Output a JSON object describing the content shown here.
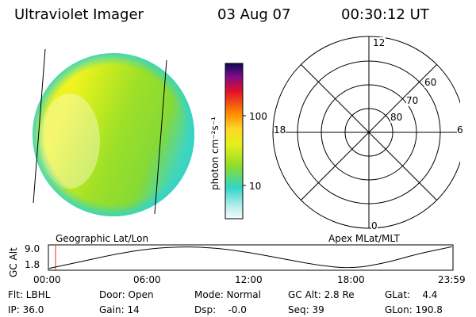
{
  "header": {
    "title": "Ultraviolet Imager",
    "date": "03 Aug 07",
    "time": "00:30:12 UT"
  },
  "imager": {
    "geo_label": "Geographic Lat/Lon",
    "apex_label": "Apex MLat/MLT"
  },
  "colorbar": {
    "unit_label": "photon cm⁻²s⁻¹",
    "ticks": [
      "100",
      "10"
    ]
  },
  "polar": {
    "mlt_labels": {
      "top": "12",
      "left": "18",
      "right": "6",
      "bottom": "0"
    },
    "lat_labels": [
      "60",
      "70",
      "80"
    ]
  },
  "altitude": {
    "axis_label": "GC Alt",
    "ytick_max": "9.0",
    "ytick_min": "1.8",
    "time_ticks": [
      "00:00",
      "06:00",
      "12:00",
      "18:00",
      "23:59"
    ]
  },
  "chart_data": {
    "type": "line",
    "title": "",
    "xlabel": "",
    "ylabel": "GC Alt",
    "x": [
      0,
      2,
      4,
      6,
      8,
      10,
      12,
      14,
      16,
      18,
      20,
      22,
      23.98
    ],
    "y": [
      1.9,
      4.2,
      6.6,
      8.3,
      9.0,
      8.5,
      7.0,
      4.9,
      2.9,
      1.8,
      3.6,
      6.7,
      8.9
    ],
    "xlim": [
      0,
      24
    ],
    "ylim": [
      1.8,
      9.0
    ]
  },
  "status": {
    "flt": "Flt: LBHL",
    "door": "Door: Open",
    "mode": "Mode: Normal",
    "gc_alt": "GC Alt: 2.8 Re",
    "glat": "GLat:    4.4",
    "ip": "IP: 36.0",
    "gain": "Gain: 14",
    "dsp": "Dsp:    -0.0",
    "seq": "Seq: 39",
    "glon": "GLon: 190.8"
  }
}
